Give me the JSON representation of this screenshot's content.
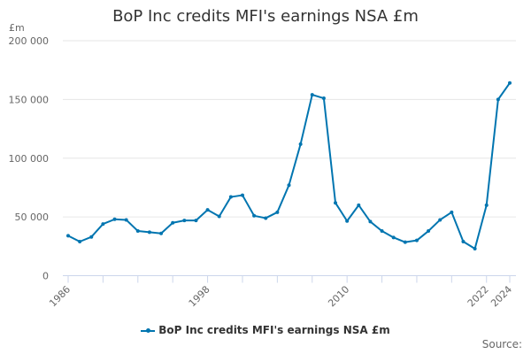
{
  "title": "BoP Inc credits MFI's earnings NSA £m",
  "y_unit": "£m",
  "legend_label": "BoP Inc credits MFI's earnings NSA £m",
  "source_label": "Source:",
  "colors": {
    "series": "#0075b0",
    "grid": "#e6e6e6",
    "axis": "#ccd6eb"
  },
  "chart_data": {
    "type": "line",
    "title": "BoP Inc credits MFI's earnings NSA £m",
    "xlabel": "",
    "ylabel": "£m",
    "ylim": [
      0,
      200000
    ],
    "y_ticks": [
      "0",
      "50 000",
      "100 000",
      "150 000",
      "200 000"
    ],
    "x_tick_labels": [
      "1986",
      "1998",
      "2010",
      "2022",
      "2024"
    ],
    "grid": true,
    "legend_position": "bottom",
    "x": [
      1986,
      1987,
      1988,
      1989,
      1990,
      1991,
      1992,
      1993,
      1994,
      1995,
      1996,
      1997,
      1998,
      1999,
      2000,
      2001,
      2002,
      2003,
      2004,
      2005,
      2006,
      2007,
      2008,
      2009,
      2010,
      2011,
      2012,
      2013,
      2014,
      2015,
      2016,
      2017,
      2018,
      2019,
      2020,
      2021,
      2022,
      2023,
      2024
    ],
    "series": [
      {
        "name": "BoP Inc credits MFI's earnings NSA £m",
        "values": [
          34000,
          29000,
          33000,
          44000,
          48000,
          47500,
          38000,
          37000,
          36000,
          45000,
          47000,
          47000,
          56000,
          50500,
          67000,
          68500,
          51000,
          49000,
          54000,
          77000,
          112000,
          154000,
          151000,
          62000,
          46500,
          60000,
          46000,
          38000,
          32500,
          28500,
          30000,
          38000,
          47500,
          54000,
          29000,
          23000,
          60000,
          150000,
          164000
        ]
      }
    ]
  }
}
